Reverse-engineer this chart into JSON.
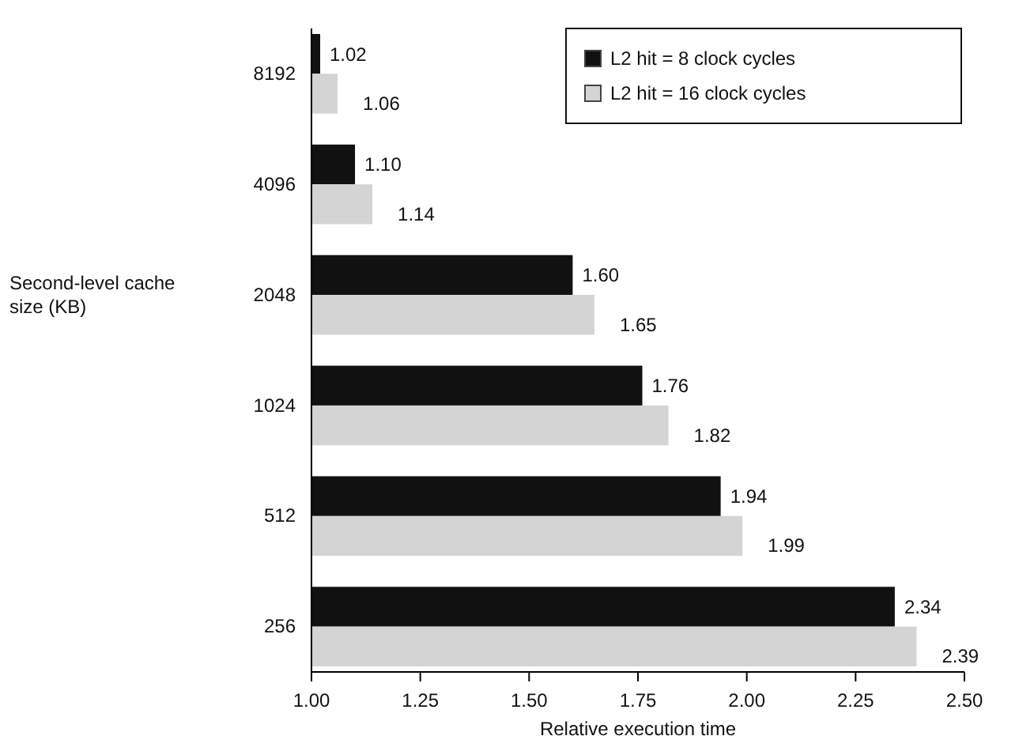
{
  "chart_data": {
    "type": "bar",
    "orientation": "horizontal",
    "xlabel": "Relative execution time",
    "ylabel": "Second-level cache size (KB)",
    "categories": [
      "8192",
      "4096",
      "2048",
      "1024",
      "512",
      "256"
    ],
    "series": [
      {
        "name": "L2 hit = 8 clock cycles",
        "color": "#111111",
        "values": [
          1.02,
          1.1,
          1.6,
          1.76,
          1.94,
          2.34
        ],
        "value_labels": [
          "1.02",
          "1.10",
          "1.60",
          "1.76",
          "1.94",
          "2.34"
        ]
      },
      {
        "name": "L2 hit = 16 clock cycles",
        "color": "#d4d4d4",
        "values": [
          1.06,
          1.14,
          1.65,
          1.82,
          1.99,
          2.39
        ],
        "value_labels": [
          "1.06",
          "1.14",
          "1.65",
          "1.82",
          "1.99",
          "2.39"
        ]
      }
    ],
    "xlim": [
      1.0,
      2.5
    ],
    "xticks": [
      {
        "value": 1,
        "label": "1.00"
      },
      {
        "value": 1.25,
        "label": "1.25"
      },
      {
        "value": 1.5,
        "label": "1.50"
      },
      {
        "value": 1.75,
        "label": "1.75"
      },
      {
        "value": 2,
        "label": "2.00"
      },
      {
        "value": 2.25,
        "label": "2.25"
      },
      {
        "value": 2.5,
        "label": "2.50"
      }
    ],
    "grid": false,
    "legend": "top right"
  }
}
